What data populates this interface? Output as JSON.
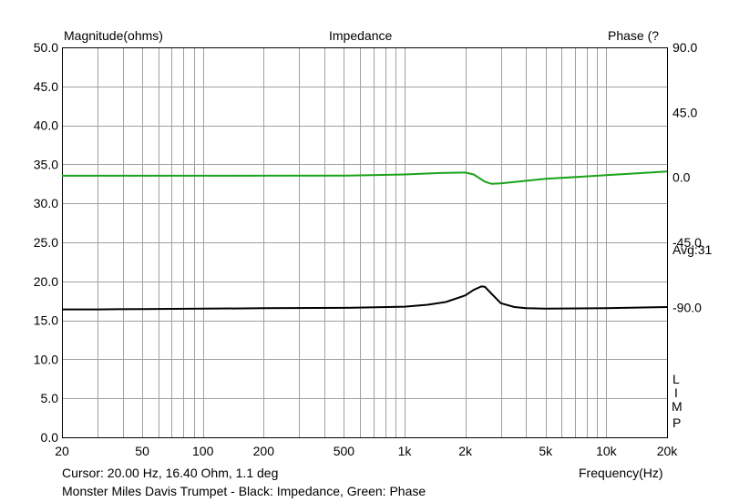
{
  "chart_data": {
    "type": "line",
    "title": "Impedance",
    "ylabel": "Magnitude(ohms)",
    "y2label": "Phase (?",
    "xlabel": "Frequency(Hz)",
    "x_scale": "log",
    "xlim": [
      20,
      20000
    ],
    "ylim": [
      0,
      50
    ],
    "y2lim": [
      -180,
      90
    ],
    "x_ticks": [
      20,
      50,
      100,
      200,
      500,
      1000,
      2000,
      5000,
      10000,
      20000
    ],
    "x_tick_labels": [
      "20",
      "50",
      "100",
      "200",
      "500",
      "1k",
      "2k",
      "5k",
      "10k",
      "20k"
    ],
    "y_ticks": [
      0,
      5,
      10,
      15,
      20,
      25,
      30,
      35,
      40,
      45,
      50
    ],
    "y_tick_labels": [
      "0.0",
      "5.0",
      "10.0",
      "15.0",
      "20.0",
      "25.0",
      "30.0",
      "35.0",
      "40.0",
      "45.0",
      "50.0"
    ],
    "y2_ticks": [
      90,
      45,
      0,
      -45,
      -90
    ],
    "y2_tick_labels": [
      "90.0",
      "45.0",
      "0.0",
      "-45.0",
      "-90.0"
    ],
    "grid": true,
    "series": [
      {
        "color": "#000000",
        "axis": "left",
        "x": [
          20,
          30,
          50,
          100,
          200,
          500,
          1000,
          1300,
          1600,
          2000,
          2200,
          2400,
          2500,
          2700,
          3000,
          3500,
          4000,
          5000,
          10000,
          20000
        ],
        "y": [
          16.4,
          16.4,
          16.45,
          16.5,
          16.55,
          16.6,
          16.75,
          17.0,
          17.35,
          18.2,
          18.9,
          19.35,
          19.3,
          18.4,
          17.2,
          16.7,
          16.55,
          16.5,
          16.55,
          16.7
        ]
      },
      {
        "color": "#1aa31a",
        "axis": "right",
        "x": [
          20,
          100,
          500,
          1000,
          1500,
          2000,
          2200,
          2500,
          2700,
          3000,
          3500,
          5000,
          10000,
          20000
        ],
        "y": [
          1.1,
          1.1,
          1.2,
          2.0,
          3.0,
          3.3,
          2.0,
          -3.0,
          -4.5,
          -4.2,
          -3.2,
          -1.0,
          1.5,
          4.0
        ]
      }
    ]
  },
  "side_labels": {
    "avg": "Avg:31",
    "limp": [
      "L",
      "I",
      "M",
      "P"
    ]
  },
  "footer": {
    "cursor": "Cursor: 20.00 Hz, 16.40 Ohm, 1.1 deg",
    "legend": "Monster Miles Davis Trumpet - Black: Impedance, Green: Phase"
  }
}
